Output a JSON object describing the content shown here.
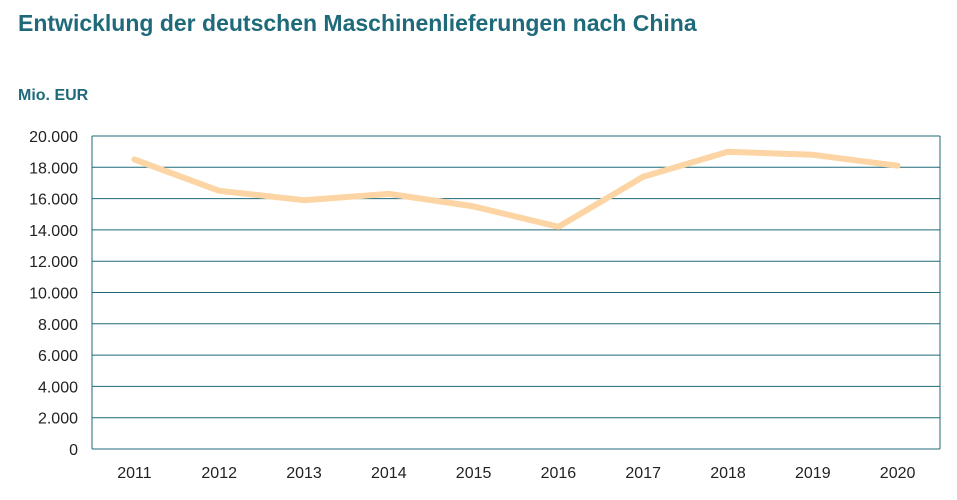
{
  "chart_data": {
    "type": "line",
    "title": "Entwicklung der deutschen Maschinenlieferungen nach China",
    "ylabel": "Mio. EUR",
    "xlabel": "",
    "categories": [
      "2011",
      "2012",
      "2013",
      "2014",
      "2015",
      "2016",
      "2017",
      "2018",
      "2019",
      "2020"
    ],
    "y_tick_labels": [
      "0",
      "2.000",
      "4.000",
      "6.000",
      "8.000",
      "10.000",
      "12.000",
      "14.000",
      "16.000",
      "18.000",
      "20.000"
    ],
    "y_ticks": [
      0,
      2000,
      4000,
      6000,
      8000,
      10000,
      12000,
      14000,
      16000,
      18000,
      20000
    ],
    "ylim": [
      0,
      20000
    ],
    "grid": true,
    "legend": "none",
    "series": [
      {
        "values": [
          18500,
          16500,
          15900,
          16300,
          15500,
          14200,
          17400,
          19000,
          18800,
          18100
        ],
        "color": "#fdd4a4"
      }
    ],
    "colors": {
      "title": "#1f6a7a",
      "grid": "#1f6a7a",
      "line": "#fdd4a4"
    }
  }
}
